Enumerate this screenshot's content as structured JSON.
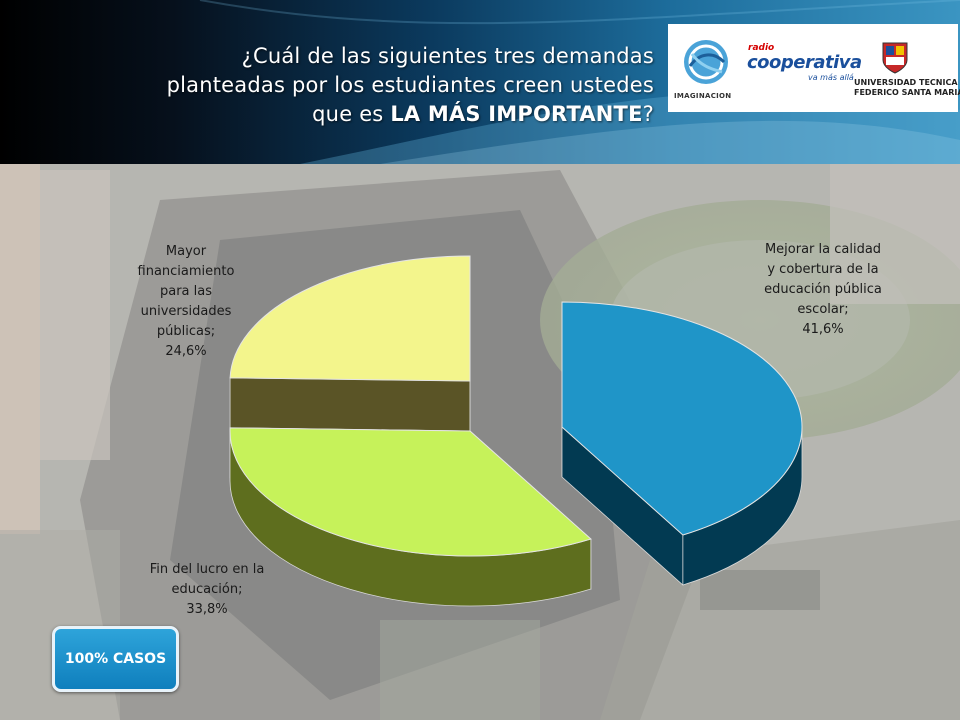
{
  "header": {
    "question_part1": "¿Cuál de las siguientes tres demandas",
    "question_part2": "planteadas por los estudiantes creen ustedes",
    "question_part3_prefix": "que es ",
    "question_emphasis": "LA MÁS IMPORTANTE",
    "question_suffix": "?"
  },
  "logos": {
    "imaginacion": "IMAGINACION",
    "radio_small": "radio",
    "cooperativa": "cooperativa",
    "cooperativa_tag": "va más allá",
    "utfsm_line1": "UNIVERSIDAD TECNICA",
    "utfsm_line2": "FEDERICO SANTA MARIA"
  },
  "badge": {
    "label": "100% CASOS"
  },
  "colors": {
    "slice_mejorar": "#1f95c8",
    "slice_fin_lucro": "#c6f25a",
    "slice_financiamiento": "#f3f58c",
    "header_accent": "#1d6d9c"
  },
  "chart_data": {
    "type": "pie",
    "title": "¿Cuál de las siguientes tres demandas planteadas por los estudiantes creen ustedes que es LA MÁS IMPORTANTE?",
    "style": "3d-exploded",
    "slices": [
      {
        "label": "Mejorar la calidad y cobertura de la educación pública escolar",
        "value": 41.6,
        "value_label": "41,6%",
        "color": "#1f95c8"
      },
      {
        "label": "Fin del lucro en la educación",
        "value": 33.8,
        "value_label": "33,8%",
        "color": "#c6f25a"
      },
      {
        "label": "Mayor financiamiento para las universidades públicas",
        "value": 24.6,
        "value_label": "24,6%",
        "color": "#f3f58c"
      }
    ],
    "data_labels": {
      "mejorar": [
        "Mejorar la calidad",
        "y cobertura de la",
        "educación pública",
        "escolar;",
        "41,6%"
      ],
      "fin_lucro": [
        "Fin del lucro en la",
        "educación;",
        "33,8%"
      ],
      "financiamiento": [
        "Mayor",
        "financiamiento",
        "para las",
        "universidades",
        "públicas;",
        "24,6%"
      ]
    }
  }
}
